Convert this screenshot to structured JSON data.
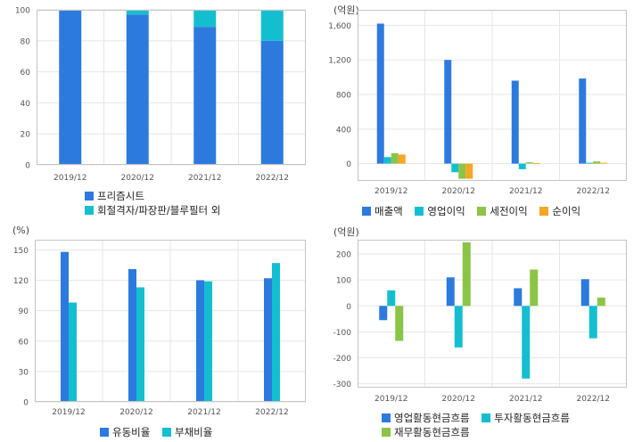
{
  "colors": {
    "blue": "#2d7adf",
    "cyan": "#13bfcf",
    "green": "#8cc447",
    "orange": "#f5a623",
    "grid": "#e6e6e6",
    "frame": "#c4c4c4"
  },
  "chart_data": [
    {
      "id": "product-mix",
      "type": "bar",
      "stacked": true,
      "unit": "",
      "categories": [
        "2019/12",
        "2020/12",
        "2021/12",
        "2022/12"
      ],
      "series": [
        {
          "name": "프리즘시트",
          "values": [
            100,
            97,
            89,
            80
          ]
        },
        {
          "name": "회절격자/파장판/블루필터 외",
          "values": [
            0,
            3,
            11,
            20
          ]
        }
      ],
      "yticks": [
        0,
        20,
        40,
        60,
        80,
        100
      ],
      "ylim": [
        0,
        100
      ],
      "grid": true,
      "legend": "bottom"
    },
    {
      "id": "income",
      "type": "bar",
      "unit": "(억원)",
      "categories": [
        "2019/12",
        "2020/12",
        "2021/12",
        "2022/12"
      ],
      "series": [
        {
          "name": "매출액",
          "values": [
            1620,
            1200,
            960,
            985
          ]
        },
        {
          "name": "영업이익",
          "values": [
            75,
            -100,
            -65,
            10
          ]
        },
        {
          "name": "세전이익",
          "values": [
            120,
            -175,
            15,
            25
          ]
        },
        {
          "name": "순이익",
          "values": [
            105,
            -175,
            5,
            10
          ]
        }
      ],
      "yticks": [
        0,
        400,
        800,
        1200,
        1600
      ],
      "yticklabels": [
        "0",
        "400",
        "800",
        "1,200",
        "1,600"
      ],
      "ylim": [
        -200,
        1780
      ],
      "grid": true,
      "legend": "bottom"
    },
    {
      "id": "ratios",
      "type": "bar",
      "unit": "(%)",
      "categories": [
        "2019/12",
        "2020/12",
        "2021/12",
        "2022/12"
      ],
      "series": [
        {
          "name": "유동비율",
          "values": [
            148,
            131,
            120,
            122
          ]
        },
        {
          "name": "부채비율",
          "values": [
            98,
            113,
            119,
            137
          ]
        }
      ],
      "yticks": [
        0,
        30,
        60,
        90,
        120,
        150
      ],
      "ylim": [
        0,
        160
      ],
      "grid": true,
      "legend": "bottom"
    },
    {
      "id": "cashflow",
      "type": "bar",
      "unit": "(억원)",
      "categories": [
        "2019/12",
        "2020/12",
        "2021/12",
        "2022/12"
      ],
      "series": [
        {
          "name": "영업활동현금흐름",
          "values": [
            -55,
            110,
            68,
            103
          ]
        },
        {
          "name": "투자활동현금흐름",
          "values": [
            60,
            -160,
            -280,
            -125
          ]
        },
        {
          "name": "재무활동현금흐름",
          "values": [
            -135,
            245,
            140,
            32
          ]
        }
      ],
      "yticks": [
        -300,
        -200,
        -100,
        0,
        100,
        200
      ],
      "ylim": [
        -315,
        255
      ],
      "grid": true,
      "legend": "bottom"
    }
  ]
}
